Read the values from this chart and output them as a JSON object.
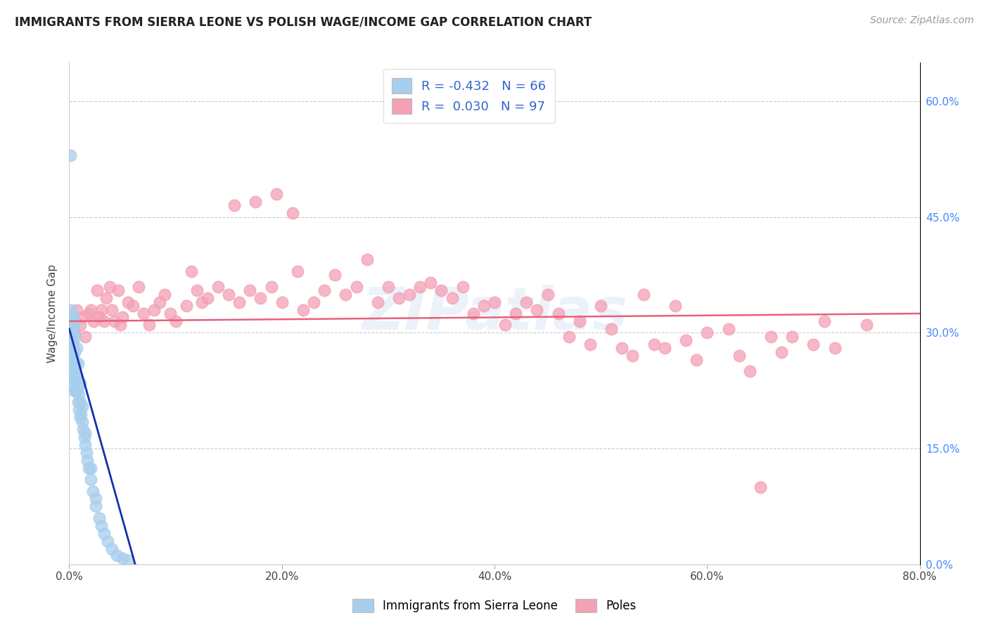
{
  "title": "IMMIGRANTS FROM SIERRA LEONE VS POLISH WAGE/INCOME GAP CORRELATION CHART",
  "source": "Source: ZipAtlas.com",
  "ylabel": "Wage/Income Gap",
  "legend_label1": "Immigrants from Sierra Leone",
  "legend_label2": "Poles",
  "R1": -0.432,
  "N1": 66,
  "R2": 0.03,
  "N2": 97,
  "color_blue": "#A8CEED",
  "color_pink": "#F4A0B5",
  "line_blue": "#1530AA",
  "line_pink": "#E8607A",
  "watermark": "ZIPatlas",
  "xlim": [
    0.0,
    0.8
  ],
  "ylim": [
    0.0,
    0.65
  ],
  "xticks": [
    0.0,
    0.2,
    0.4,
    0.6,
    0.8
  ],
  "yticks_right": [
    0.0,
    0.15,
    0.3,
    0.45,
    0.6
  ],
  "blue_x": [
    0.001,
    0.001,
    0.001,
    0.002,
    0.002,
    0.002,
    0.002,
    0.003,
    0.003,
    0.003,
    0.003,
    0.003,
    0.004,
    0.004,
    0.004,
    0.004,
    0.005,
    0.005,
    0.005,
    0.005,
    0.006,
    0.006,
    0.006,
    0.007,
    0.007,
    0.008,
    0.008,
    0.009,
    0.009,
    0.01,
    0.01,
    0.011,
    0.012,
    0.013,
    0.014,
    0.015,
    0.016,
    0.017,
    0.018,
    0.02,
    0.022,
    0.025,
    0.028,
    0.03,
    0.033,
    0.036,
    0.04,
    0.045,
    0.05,
    0.055,
    0.001,
    0.002,
    0.002,
    0.003,
    0.003,
    0.004,
    0.005,
    0.006,
    0.007,
    0.008,
    0.01,
    0.012,
    0.015,
    0.02,
    0.025,
    0.001
  ],
  "blue_y": [
    0.295,
    0.275,
    0.26,
    0.31,
    0.29,
    0.275,
    0.255,
    0.3,
    0.285,
    0.27,
    0.255,
    0.24,
    0.285,
    0.27,
    0.255,
    0.235,
    0.275,
    0.26,
    0.245,
    0.225,
    0.26,
    0.245,
    0.225,
    0.245,
    0.225,
    0.23,
    0.21,
    0.22,
    0.2,
    0.21,
    0.19,
    0.195,
    0.185,
    0.175,
    0.165,
    0.155,
    0.145,
    0.135,
    0.125,
    0.11,
    0.095,
    0.075,
    0.06,
    0.05,
    0.04,
    0.03,
    0.02,
    0.012,
    0.008,
    0.005,
    0.32,
    0.33,
    0.305,
    0.315,
    0.295,
    0.32,
    0.31,
    0.295,
    0.28,
    0.26,
    0.235,
    0.205,
    0.17,
    0.125,
    0.085,
    0.53
  ],
  "pink_x": [
    0.003,
    0.005,
    0.007,
    0.01,
    0.012,
    0.015,
    0.018,
    0.02,
    0.023,
    0.026,
    0.028,
    0.03,
    0.033,
    0.035,
    0.038,
    0.04,
    0.043,
    0.046,
    0.048,
    0.05,
    0.055,
    0.06,
    0.065,
    0.07,
    0.075,
    0.08,
    0.085,
    0.09,
    0.095,
    0.1,
    0.11,
    0.115,
    0.12,
    0.125,
    0.13,
    0.14,
    0.15,
    0.155,
    0.16,
    0.17,
    0.175,
    0.18,
    0.19,
    0.195,
    0.2,
    0.21,
    0.215,
    0.22,
    0.23,
    0.24,
    0.25,
    0.26,
    0.27,
    0.28,
    0.29,
    0.3,
    0.31,
    0.32,
    0.33,
    0.34,
    0.35,
    0.36,
    0.37,
    0.38,
    0.39,
    0.4,
    0.41,
    0.42,
    0.43,
    0.44,
    0.45,
    0.46,
    0.47,
    0.48,
    0.49,
    0.5,
    0.51,
    0.52,
    0.53,
    0.54,
    0.55,
    0.56,
    0.57,
    0.58,
    0.59,
    0.6,
    0.62,
    0.63,
    0.64,
    0.65,
    0.66,
    0.67,
    0.68,
    0.7,
    0.71,
    0.72,
    0.75
  ],
  "pink_y": [
    0.315,
    0.3,
    0.33,
    0.31,
    0.32,
    0.295,
    0.325,
    0.33,
    0.315,
    0.355,
    0.32,
    0.33,
    0.315,
    0.345,
    0.36,
    0.33,
    0.315,
    0.355,
    0.31,
    0.32,
    0.34,
    0.335,
    0.36,
    0.325,
    0.31,
    0.33,
    0.34,
    0.35,
    0.325,
    0.315,
    0.335,
    0.38,
    0.355,
    0.34,
    0.345,
    0.36,
    0.35,
    0.465,
    0.34,
    0.355,
    0.47,
    0.345,
    0.36,
    0.48,
    0.34,
    0.455,
    0.38,
    0.33,
    0.34,
    0.355,
    0.375,
    0.35,
    0.36,
    0.395,
    0.34,
    0.36,
    0.345,
    0.35,
    0.36,
    0.365,
    0.355,
    0.345,
    0.36,
    0.325,
    0.335,
    0.34,
    0.31,
    0.325,
    0.34,
    0.33,
    0.35,
    0.325,
    0.295,
    0.315,
    0.285,
    0.335,
    0.305,
    0.28,
    0.27,
    0.35,
    0.285,
    0.28,
    0.335,
    0.29,
    0.265,
    0.3,
    0.305,
    0.27,
    0.25,
    0.1,
    0.295,
    0.275,
    0.295,
    0.285,
    0.315,
    0.28,
    0.31
  ]
}
